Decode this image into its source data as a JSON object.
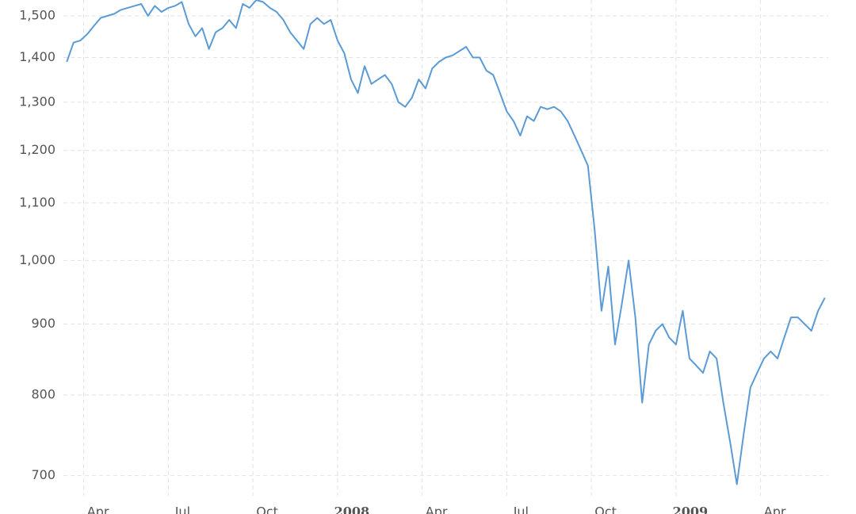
{
  "chart_data": {
    "type": "line",
    "log_y": true,
    "grid": true,
    "color": "#5b9bd5",
    "xlim": [
      2007.19,
      2009.45
    ],
    "ylim": [
      677,
      1540
    ],
    "xticks": [
      {
        "value": 2007.25,
        "label": "Apr"
      },
      {
        "value": 2007.5,
        "label": "Jul"
      },
      {
        "value": 2007.75,
        "label": "Oct"
      },
      2008,
      {
        "value": 2008.25,
        "label": "Apr"
      },
      {
        "value": 2008.5,
        "label": "Jul"
      },
      {
        "value": 2008.75,
        "label": "Oct"
      },
      2009,
      {
        "value": 2009.25,
        "label": "Apr"
      }
    ],
    "yticks": [
      700,
      800,
      900,
      {
        "value": 1000,
        "label": "1,000"
      },
      {
        "value": 1100,
        "label": "1,100"
      },
      {
        "value": 1200,
        "label": "1,200"
      },
      {
        "value": 1300,
        "label": "1,300"
      },
      {
        "value": 1400,
        "label": "1,400"
      },
      {
        "value": 1500,
        "label": "1,500"
      }
    ],
    "x": [
      2007.2,
      2007.22,
      2007.24,
      2007.26,
      2007.28,
      2007.3,
      2007.32,
      2007.34,
      2007.36,
      2007.38,
      2007.4,
      2007.42,
      2007.44,
      2007.46,
      2007.48,
      2007.5,
      2007.52,
      2007.54,
      2007.56,
      2007.58,
      2007.6,
      2007.62,
      2007.64,
      2007.66,
      2007.68,
      2007.7,
      2007.72,
      2007.74,
      2007.76,
      2007.78,
      2007.8,
      2007.82,
      2007.84,
      2007.86,
      2007.88,
      2007.9,
      2007.92,
      2007.94,
      2007.96,
      2007.98,
      2008,
      2008.02,
      2008.04,
      2008.06,
      2008.08,
      2008.1,
      2008.12,
      2008.14,
      2008.16,
      2008.18,
      2008.2,
      2008.22,
      2008.24,
      2008.26,
      2008.28,
      2008.3,
      2008.32,
      2008.34,
      2008.36,
      2008.38,
      2008.4,
      2008.42,
      2008.44,
      2008.46,
      2008.48,
      2008.5,
      2008.52,
      2008.54,
      2008.56,
      2008.58,
      2008.6,
      2008.62,
      2008.64,
      2008.66,
      2008.68,
      2008.7,
      2008.72,
      2008.74,
      2008.76,
      2008.78,
      2008.8,
      2008.82,
      2008.84,
      2008.86,
      2008.88,
      2008.9,
      2008.92,
      2008.94,
      2008.96,
      2008.98,
      2009,
      2009.02,
      2009.04,
      2009.06,
      2009.08,
      2009.1,
      2009.12,
      2009.14,
      2009.16,
      2009.18,
      2009.2,
      2009.22,
      2009.24,
      2009.26,
      2009.28,
      2009.3,
      2009.32,
      2009.34,
      2009.36,
      2009.38,
      2009.4,
      2009.42,
      2009.44
    ],
    "values": [
      1390,
      1435,
      1440,
      1455,
      1475,
      1495,
      1500,
      1505,
      1515,
      1520,
      1525,
      1530,
      1500,
      1525,
      1510,
      1520,
      1525,
      1535,
      1480,
      1450,
      1470,
      1420,
      1460,
      1470,
      1490,
      1470,
      1530,
      1520,
      1540,
      1535,
      1520,
      1510,
      1490,
      1460,
      1440,
      1420,
      1480,
      1495,
      1480,
      1490,
      1440,
      1410,
      1350,
      1320,
      1380,
      1340,
      1350,
      1360,
      1340,
      1300,
      1290,
      1310,
      1350,
      1330,
      1375,
      1390,
      1400,
      1405,
      1415,
      1425,
      1400,
      1400,
      1370,
      1360,
      1320,
      1280,
      1260,
      1230,
      1270,
      1260,
      1290,
      1285,
      1290,
      1280,
      1260,
      1230,
      1200,
      1170,
      1050,
      920,
      990,
      870,
      930,
      1000,
      910,
      790,
      870,
      890,
      900,
      880,
      870,
      920,
      850,
      840,
      830,
      860,
      850,
      790,
      740,
      690,
      750,
      810,
      830,
      850,
      860,
      850,
      880,
      910,
      910,
      900,
      890,
      920,
      940
    ]
  }
}
